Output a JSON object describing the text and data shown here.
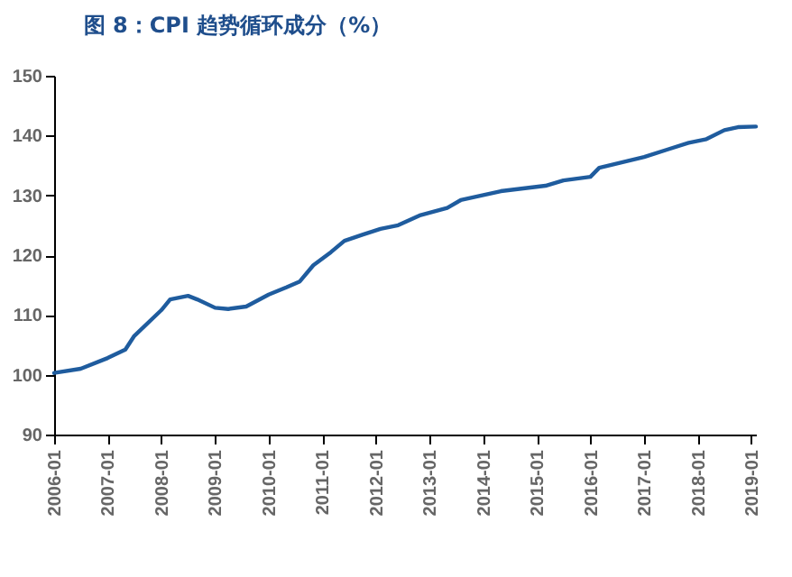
{
  "chart_data": {
    "type": "line",
    "title": "图 8：CPI 趋势循环成分（%）",
    "x": [
      "2006-01",
      "2006-07",
      "2007-01",
      "2007-05",
      "2007-07",
      "2008-01",
      "2008-03",
      "2008-07",
      "2008-09",
      "2009-01",
      "2009-04",
      "2009-08",
      "2010-01",
      "2010-05",
      "2010-08",
      "2010-11",
      "2011-03",
      "2011-06",
      "2011-10",
      "2012-02",
      "2012-06",
      "2012-11",
      "2013-05",
      "2013-08",
      "2014-05",
      "2015-03",
      "2015-07",
      "2016-01",
      "2016-03",
      "2016-08",
      "2017-01",
      "2017-06",
      "2017-11",
      "2018-03",
      "2018-07",
      "2018-10",
      "2019-02"
    ],
    "series": [
      {
        "color": "#1f5c9e",
        "values": [
          100.3,
          101,
          102.8,
          104.2,
          106.5,
          110.8,
          112.6,
          113.2,
          112.6,
          111.2,
          111,
          111.4,
          113.4,
          114.6,
          115.6,
          118.3,
          120.5,
          122.4,
          123.4,
          124.4,
          125,
          126.7,
          127.9,
          129.2,
          130.7,
          131.6,
          132.5,
          133.1,
          134.6,
          135.5,
          136.4,
          137.6,
          138.8,
          139.4,
          140.9,
          141.4,
          141.5
        ]
      }
    ],
    "xlim": [
      "2006-01",
      "2019-02"
    ],
    "xticks": [
      "2006-01",
      "2007-01",
      "2008-01",
      "2009-01",
      "2010-01",
      "2011-01",
      "2012-01",
      "2013-01",
      "2014-01",
      "2015-01",
      "2016-01",
      "2017-01",
      "2018-01",
      "2019-01"
    ],
    "ylim": [
      90,
      150
    ],
    "yticks": [
      90,
      100,
      110,
      120,
      130,
      140,
      150
    ],
    "grid": false,
    "marker": "none",
    "line_style": "solid"
  }
}
